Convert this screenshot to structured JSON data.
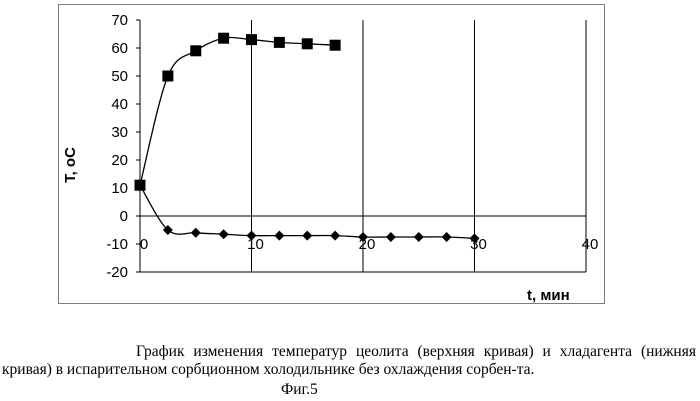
{
  "chart_data": {
    "type": "line",
    "title": "",
    "xlabel": "t, мин",
    "ylabel": "T, oC",
    "xlim": [
      0,
      40
    ],
    "ylim": [
      -20,
      70
    ],
    "x_ticks": [
      "0",
      "10",
      "20",
      "30",
      "40"
    ],
    "y_ticks": [
      "-20",
      "-10",
      "0",
      "10",
      "20",
      "30",
      "40",
      "50",
      "60",
      "70"
    ],
    "grid": "vertical",
    "legend": "none",
    "series": [
      {
        "marker": "square",
        "color": "#000000",
        "x": [
          0,
          2.5,
          5,
          7.5,
          10,
          12.5,
          15,
          17.5
        ],
        "y": [
          11,
          50,
          59,
          63.5,
          63,
          62,
          61.5,
          61
        ]
      },
      {
        "marker": "diamond",
        "color": "#000000",
        "x": [
          0,
          2.5,
          5,
          7.5,
          10,
          12.5,
          15,
          17.5,
          20,
          22.5,
          25,
          27.5,
          30
        ],
        "y": [
          11,
          -5,
          -6,
          -6.5,
          -7,
          -7,
          -7,
          -7,
          -7.5,
          -7.5,
          -7.5,
          -7.5,
          -8
        ]
      }
    ]
  },
  "caption": "График изменения температур цеолита (верхняя кривая) и хладагента (нижняя кривая) в испарительном сорбционном холодильнике без охлаждения сорбен-та.",
  "figure_label": "Фиг.5"
}
